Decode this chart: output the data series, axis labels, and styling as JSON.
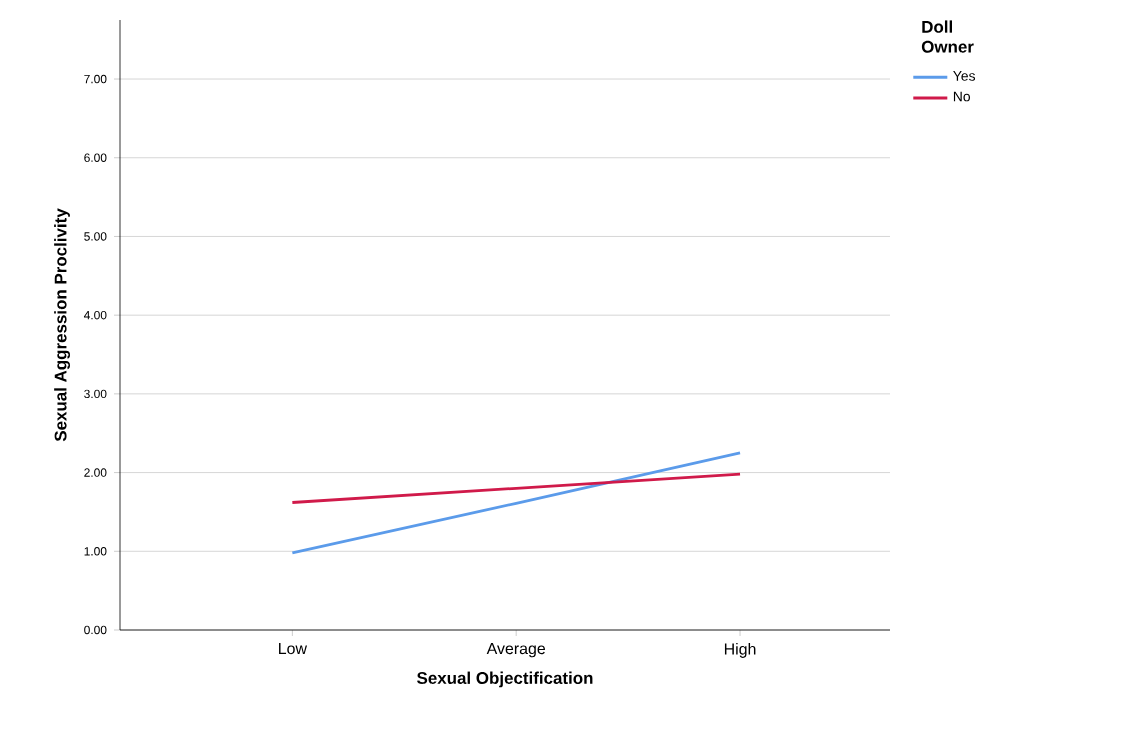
{
  "chart_data": {
    "type": "line",
    "xlabel": "Sexual Objectification",
    "ylabel": "Sexual Aggression Proclivity",
    "legend_title": "Doll Owner",
    "categories": [
      "Low",
      "Average",
      "High"
    ],
    "series": [
      {
        "name": "Yes",
        "color": "#5b9bea",
        "values": [
          0.98,
          1.61,
          2.25
        ]
      },
      {
        "name": "No",
        "color": "#d01a4a",
        "values": [
          1.62,
          1.8,
          1.98
        ]
      }
    ],
    "ylim": [
      0,
      7.75
    ],
    "yticks": [
      {
        "value": 0,
        "label": "0.00"
      },
      {
        "value": 1,
        "label": "1.00"
      },
      {
        "value": 2,
        "label": "2.00"
      },
      {
        "value": 3,
        "label": "3.00"
      },
      {
        "value": 4,
        "label": "4.00"
      },
      {
        "value": 5,
        "label": "5.00"
      },
      {
        "value": 6,
        "label": "6.00"
      },
      {
        "value": 7,
        "label": "7.00"
      }
    ],
    "grid": "y",
    "legend": "top right",
    "marker": "none",
    "line_style": "solid"
  }
}
